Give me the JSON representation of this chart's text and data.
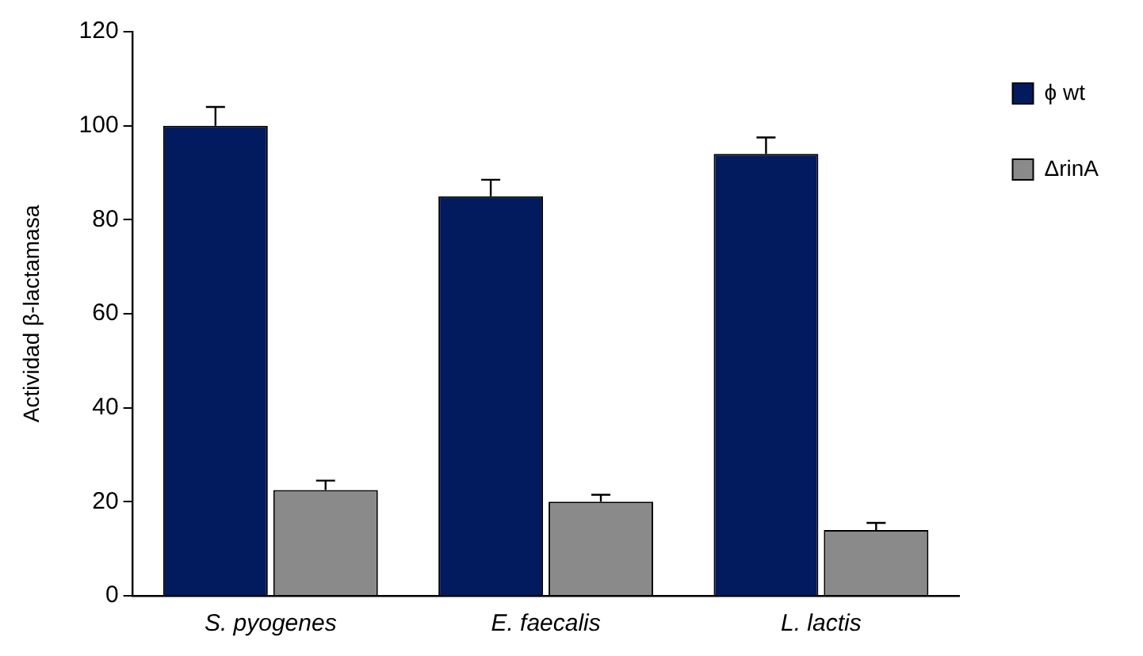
{
  "chart_data": {
    "type": "bar",
    "ylabel": "Actividad β-lactamasa",
    "categories": [
      "S. pyogenes",
      "E. faecalis",
      "L. lactis"
    ],
    "series": [
      {
        "name": "ϕ wt",
        "color": "#021b5e",
        "values": [
          100,
          85,
          94
        ],
        "errors": [
          [
            100,
            104
          ],
          [
            85,
            88.5
          ],
          [
            94,
            97.5
          ]
        ]
      },
      {
        "name": "ΔrinA",
        "color": "#8a8a8a",
        "values": [
          22.5,
          20,
          14
        ],
        "errors": [
          [
            22.5,
            24.5
          ],
          [
            20,
            21.5
          ],
          [
            14,
            15.5
          ]
        ]
      }
    ],
    "ylim": [
      0,
      120
    ],
    "yticks": [
      0,
      20,
      40,
      60,
      80,
      100,
      120
    ],
    "grid": false,
    "legend": "top right"
  }
}
